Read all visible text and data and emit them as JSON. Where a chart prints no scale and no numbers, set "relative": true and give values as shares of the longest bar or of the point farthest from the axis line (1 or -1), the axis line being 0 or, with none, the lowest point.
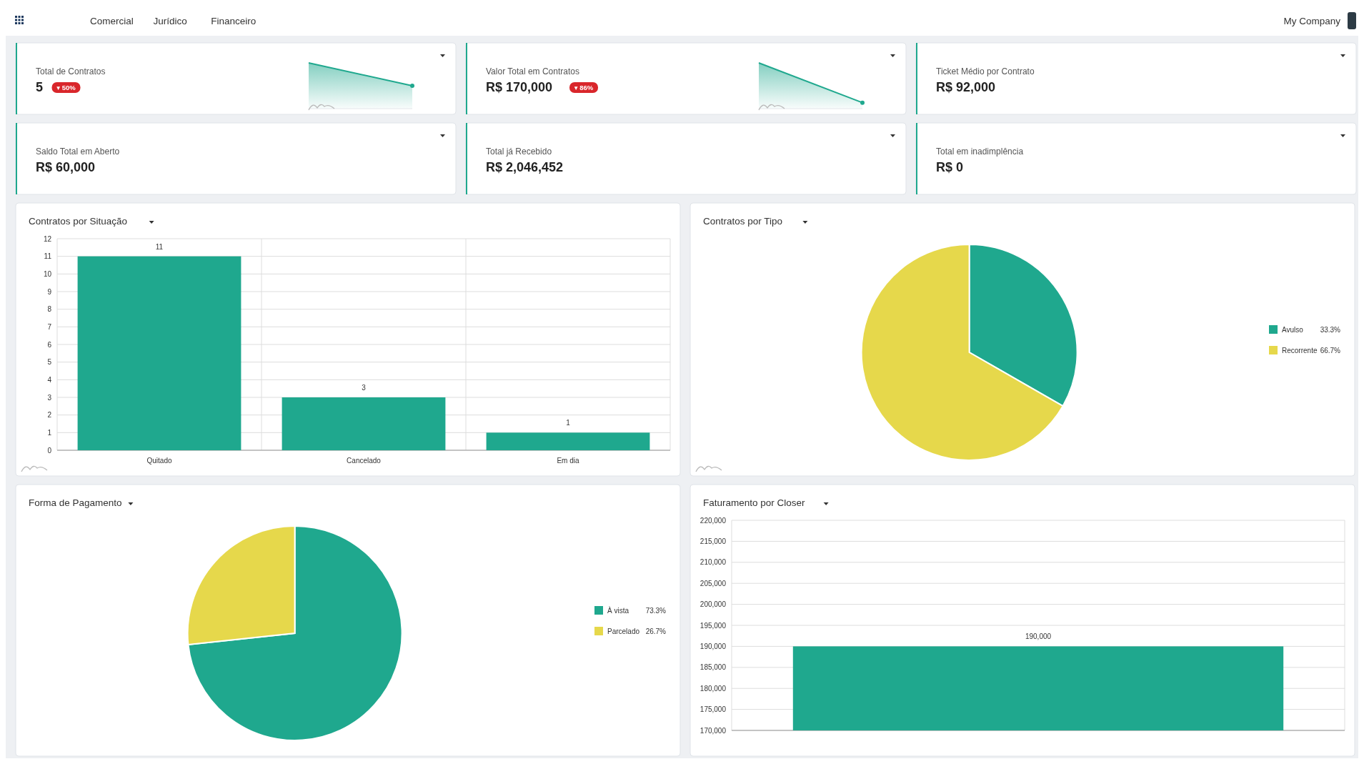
{
  "chart_data": [
    {
      "type": "other",
      "annotations": [
        "Comercial",
        "Jurídico",
        "Financeiro",
        "My Company"
      ]
    },
    {
      "type": "other",
      "title": "Total de Contratos",
      "annotations": [
        "5",
        "▾ 50%"
      ]
    },
    {
      "type": "area",
      "categories": [
        null,
        null
      ],
      "values": [
        1,
        0.5
      ],
      "relative": true,
      "color": "#1fa88e"
    },
    {
      "type": "other",
      "title": "Valor Total em Contratos",
      "annotations": [
        "R$ 170,000",
        "▾ 86%"
      ]
    },
    {
      "type": "area",
      "categories": [
        null,
        null
      ],
      "values": [
        1,
        0.13
      ],
      "relative": true,
      "color": "#1fa88e"
    },
    {
      "type": "other",
      "title": "Ticket Médio por Contrato",
      "annotations": [
        "R$ 92,000"
      ]
    },
    {
      "type": "other",
      "title": "Saldo Total em Aberto",
      "annotations": [
        "R$ 60,000"
      ]
    },
    {
      "type": "other",
      "title": "Total já Recebido",
      "annotations": [
        "R$ 2,046,452"
      ]
    },
    {
      "type": "other",
      "title": "Total em inadimplência",
      "annotations": [
        "R$ 0"
      ]
    },
    {
      "type": "bar",
      "title": "Contratos por Situação",
      "categories": [
        "Quitado",
        "Cancelado",
        "Em dia"
      ],
      "values": [
        11,
        3,
        1
      ],
      "color": "#1fa88e",
      "ylim": [
        0,
        12
      ],
      "yticks": [
        0,
        1,
        2,
        3,
        4,
        5,
        6,
        7,
        8,
        9,
        10,
        11,
        12
      ],
      "grid": true,
      "data_labels": true
    },
    {
      "type": "pie",
      "title": "Contratos por Tipo",
      "categories": [
        "Avulso",
        "Recorrente"
      ],
      "values": [
        33.3,
        66.7
      ],
      "colors": [
        "#1fa88e",
        "#e6d84b"
      ],
      "value_labels": [
        "33.3%",
        "66.7%"
      ],
      "legend": "right"
    },
    {
      "type": "pie",
      "title": "Forma de Pagamento",
      "categories": [
        "À vista",
        "Parcelado"
      ],
      "values": [
        73.3,
        26.7
      ],
      "colors": [
        "#1fa88e",
        "#e6d84b"
      ],
      "value_labels": [
        "73.3%",
        "26.7%"
      ],
      "legend": "right"
    },
    {
      "type": "bar",
      "title": "Faturamento por Closer",
      "categories": [
        null
      ],
      "values": [
        190000
      ],
      "color": "#1fa88e",
      "ylim": [
        170000,
        220000
      ],
      "yticks": [
        {
          "value": 170000,
          "label": "170,000"
        },
        {
          "value": 175000,
          "label": "175,000"
        },
        {
          "value": 180000,
          "label": "180,000"
        },
        {
          "value": 185000,
          "label": "185,000"
        },
        {
          "value": 190000,
          "label": "190,000"
        },
        {
          "value": 195000,
          "label": "195,000"
        },
        {
          "value": 200000,
          "label": "200,000"
        },
        {
          "value": 205000,
          "label": "205,000"
        },
        {
          "value": 210000,
          "label": "210,000"
        },
        {
          "value": 215000,
          "label": "215,000"
        },
        {
          "value": 220000,
          "label": "220,000"
        }
      ],
      "grid": true,
      "value_labels": [
        "190,000"
      ]
    }
  ]
}
